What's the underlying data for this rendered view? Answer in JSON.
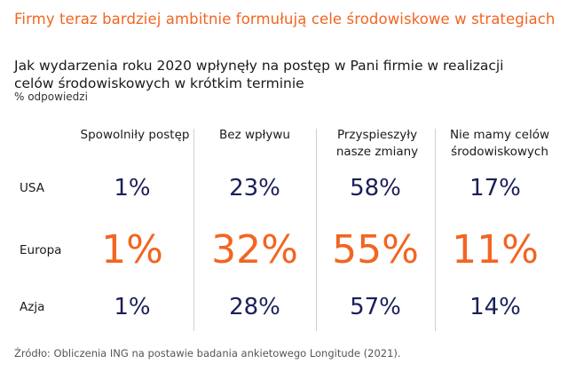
{
  "headline": "Firmy teraz bardziej ambitnie formułują cele środowiskowe w strategiach",
  "chart_data": {
    "type": "table",
    "title": "Jak wydarzenia roku 2020 wpłynęły na postęp w Pani firmie w realizacji celów środowiskowych w krótkim terminie",
    "subtitle": "% odpowiedzi",
    "columns": [
      "Spowolniły postęp",
      "Bez wpływu",
      "Przyspieszyły nasze zmiany",
      "Nie mamy celów środowiskowych"
    ],
    "rows": [
      {
        "label": "USA",
        "values": [
          "1%",
          "23%",
          "58%",
          "17%"
        ],
        "highlight": false
      },
      {
        "label": "Europa",
        "values": [
          "1%",
          "32%",
          "55%",
          "11%"
        ],
        "highlight": true
      },
      {
        "label": "Azja",
        "values": [
          "1%",
          "28%",
          "57%",
          "14%"
        ],
        "highlight": false
      }
    ],
    "colors": {
      "accent": "#f26522",
      "value": "#1b1f5a"
    }
  },
  "source": "Źródło: Obliczenia ING na postawie badania ankietowego Longitude (2021)."
}
